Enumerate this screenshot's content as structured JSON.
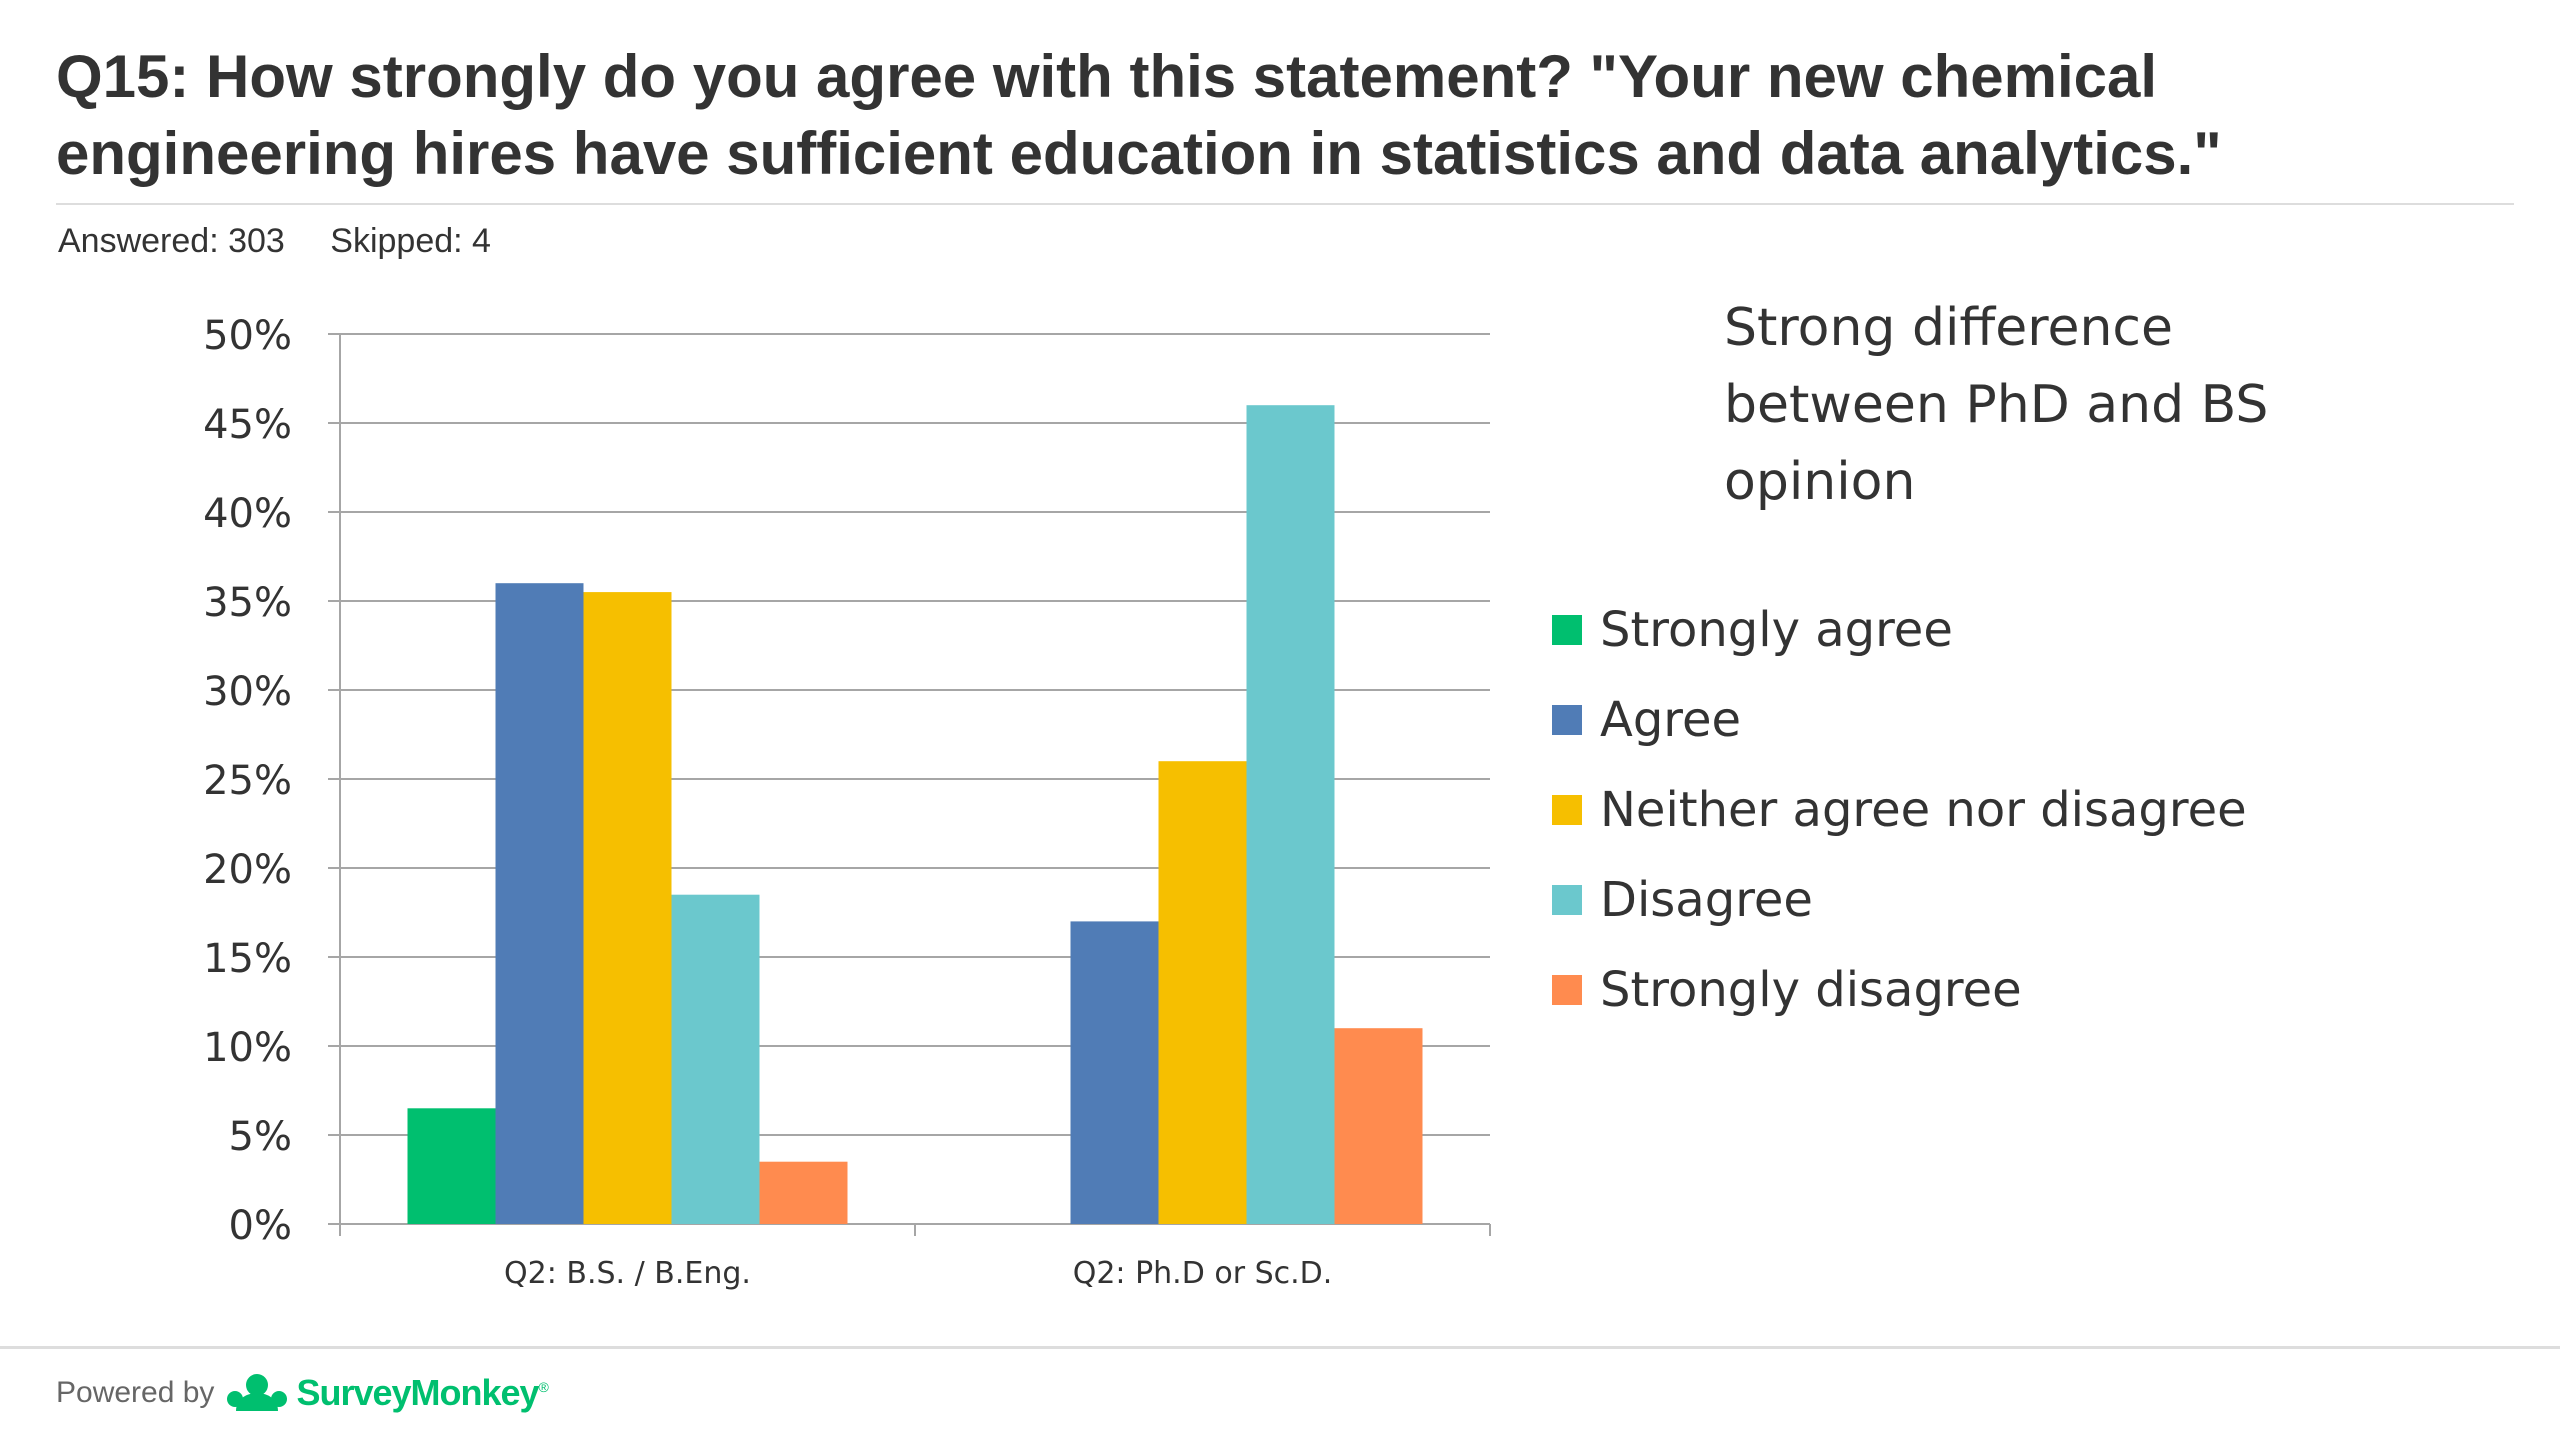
{
  "question": {
    "title": "Q15: How strongly do you agree with this statement? \"Your new chemical engineering hires have sufficient education in statistics and data analytics.\"",
    "answered": "Answered: 303",
    "skipped": "Skipped: 4"
  },
  "callout": "Strong difference between PhD and BS opinion",
  "footer": {
    "powered_by": "Powered by",
    "brand": "SurveyMonkey",
    "brand_mark": "®"
  },
  "chart_data": {
    "type": "bar",
    "categories": [
      "Q2: B.S. / B.Eng.",
      "Q2: Ph.D or Sc.D."
    ],
    "series": [
      {
        "name": "Strongly agree",
        "color": "#00bf6f",
        "values": [
          6.5,
          0
        ]
      },
      {
        "name": "Agree",
        "color": "#507cb6",
        "values": [
          36,
          17
        ]
      },
      {
        "name": "Neither agree nor disagree",
        "color": "#f6bf00",
        "values": [
          35.5,
          26
        ]
      },
      {
        "name": "Disagree",
        "color": "#6bc8cd",
        "values": [
          18.5,
          46
        ]
      },
      {
        "name": "Strongly disagree",
        "color": "#ff8b4f",
        "values": [
          3.5,
          11
        ]
      }
    ],
    "ylim": [
      0,
      50
    ],
    "yticks": [
      "0%",
      "5%",
      "10%",
      "15%",
      "20%",
      "25%",
      "30%",
      "35%",
      "40%",
      "45%",
      "50%"
    ],
    "grid": true,
    "legend": "right"
  }
}
